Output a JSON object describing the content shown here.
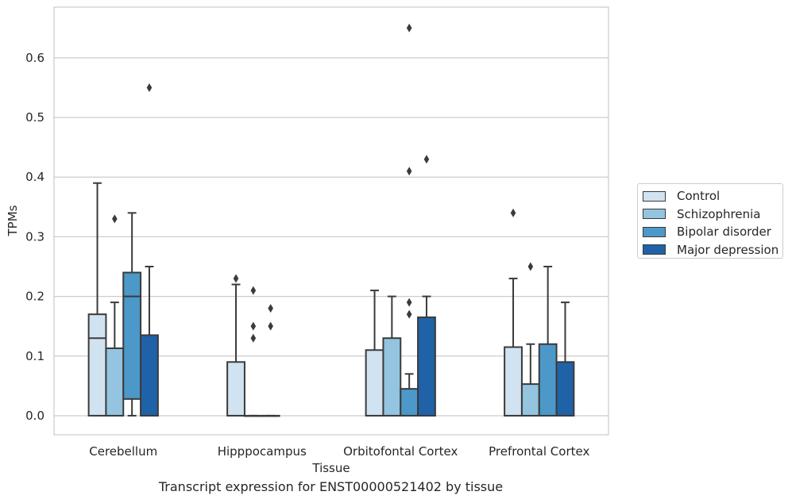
{
  "caption": "Transcript expression for ENST00000521402 by tissue",
  "chart_data": {
    "type": "box",
    "xlabel": "Tissue",
    "ylabel": "TPMs",
    "ylim": [
      -0.032,
      0.685
    ],
    "yticks": [
      0.0,
      0.1,
      0.2,
      0.3,
      0.4,
      0.5,
      0.6
    ],
    "ytick_labels": [
      "0.0",
      "0.1",
      "0.2",
      "0.3",
      "0.4",
      "0.5",
      "0.6"
    ],
    "grid": true,
    "legend_position": "outside-right",
    "categories": [
      "Cerebellum",
      "Hipppocampus",
      "Orbitofontal Cortex",
      "Prefrontal Cortex"
    ],
    "series": [
      {
        "name": "Control",
        "color": "#d1e2f0",
        "boxes": [
          {
            "q1": 0.0,
            "median": 0.13,
            "q3": 0.17,
            "whislo": 0.0,
            "whishi": 0.39,
            "fliers": []
          },
          {
            "q1": 0.0,
            "median": 0.0,
            "q3": 0.09,
            "whislo": 0.0,
            "whishi": 0.22,
            "fliers": [
              0.23
            ]
          },
          {
            "q1": 0.0,
            "median": 0.0,
            "q3": 0.11,
            "whislo": 0.0,
            "whishi": 0.21,
            "fliers": []
          },
          {
            "q1": 0.0,
            "median": 0.0,
            "q3": 0.115,
            "whislo": 0.0,
            "whishi": 0.23,
            "fliers": [
              0.34
            ]
          }
        ]
      },
      {
        "name": "Schizophrenia",
        "color": "#94c4df",
        "boxes": [
          {
            "q1": 0.0,
            "median": 0.0,
            "q3": 0.113,
            "whislo": 0.0,
            "whishi": 0.19,
            "fliers": [
              0.33
            ]
          },
          {
            "q1": 0.0,
            "median": 0.0,
            "q3": 0.0,
            "whislo": 0.0,
            "whishi": 0.0,
            "fliers": [
              0.21,
              0.15,
              0.13
            ]
          },
          {
            "q1": 0.0,
            "median": 0.0,
            "q3": 0.13,
            "whislo": 0.0,
            "whishi": 0.2,
            "fliers": []
          },
          {
            "q1": 0.0,
            "median": 0.0,
            "q3": 0.053,
            "whislo": 0.0,
            "whishi": 0.12,
            "fliers": [
              0.25
            ]
          }
        ]
      },
      {
        "name": "Bipolar disorder",
        "color": "#4b98c9",
        "boxes": [
          {
            "q1": 0.028,
            "median": 0.2,
            "q3": 0.24,
            "whislo": 0.0,
            "whishi": 0.34,
            "fliers": []
          },
          {
            "q1": 0.0,
            "median": 0.0,
            "q3": 0.0,
            "whislo": 0.0,
            "whishi": 0.0,
            "fliers": [
              0.18,
              0.15
            ]
          },
          {
            "q1": 0.0,
            "median": 0.0,
            "q3": 0.045,
            "whislo": 0.0,
            "whishi": 0.07,
            "fliers": [
              0.65,
              0.41,
              0.19,
              0.17
            ]
          },
          {
            "q1": 0.0,
            "median": 0.0,
            "q3": 0.12,
            "whislo": 0.0,
            "whishi": 0.25,
            "fliers": []
          }
        ]
      },
      {
        "name": "Major depression",
        "color": "#1f62a8",
        "boxes": [
          {
            "q1": 0.0,
            "median": 0.0,
            "q3": 0.135,
            "whislo": 0.0,
            "whishi": 0.25,
            "fliers": [
              0.55
            ]
          },
          null,
          {
            "q1": 0.0,
            "median": 0.0,
            "q3": 0.165,
            "whislo": 0.0,
            "whishi": 0.2,
            "fliers": [
              0.43
            ]
          },
          {
            "q1": 0.0,
            "median": 0.0,
            "q3": 0.09,
            "whislo": 0.0,
            "whishi": 0.19,
            "fliers": []
          }
        ]
      }
    ]
  }
}
